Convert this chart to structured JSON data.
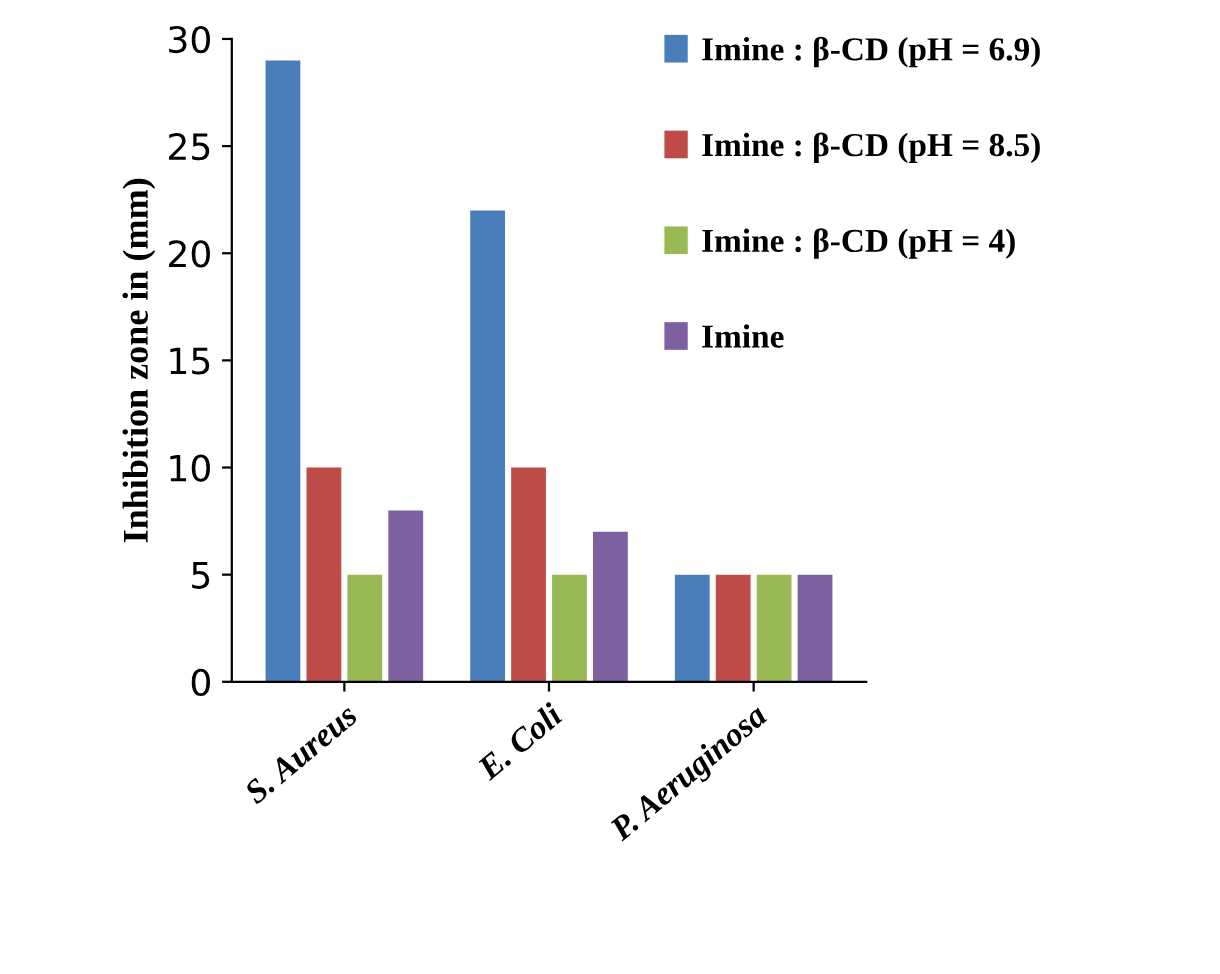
{
  "chart_data": {
    "type": "bar",
    "ylabel": "Inhibition zone in (mm)",
    "categories": [
      "S. Aureus",
      "E. Coli",
      "P. Aeruginosa"
    ],
    "series": [
      {
        "name": "Imine : β-CD (pH = 6.9)",
        "color": "#4a7ebb",
        "values": [
          29,
          22,
          5
        ]
      },
      {
        "name": "Imine : β-CD (pH = 8.5)",
        "color": "#be4b48",
        "values": [
          10,
          10,
          5
        ]
      },
      {
        "name": "Imine : β-CD (pH = 4)",
        "color": "#98b954",
        "values": [
          5,
          5,
          5
        ]
      },
      {
        "name": "Imine",
        "color": "#7d60a0",
        "values": [
          8,
          7,
          5
        ]
      }
    ],
    "ylim": [
      0,
      30
    ],
    "yticks": [
      0,
      5,
      10,
      15,
      20,
      25,
      30
    ],
    "grid": false,
    "legend": "right"
  }
}
